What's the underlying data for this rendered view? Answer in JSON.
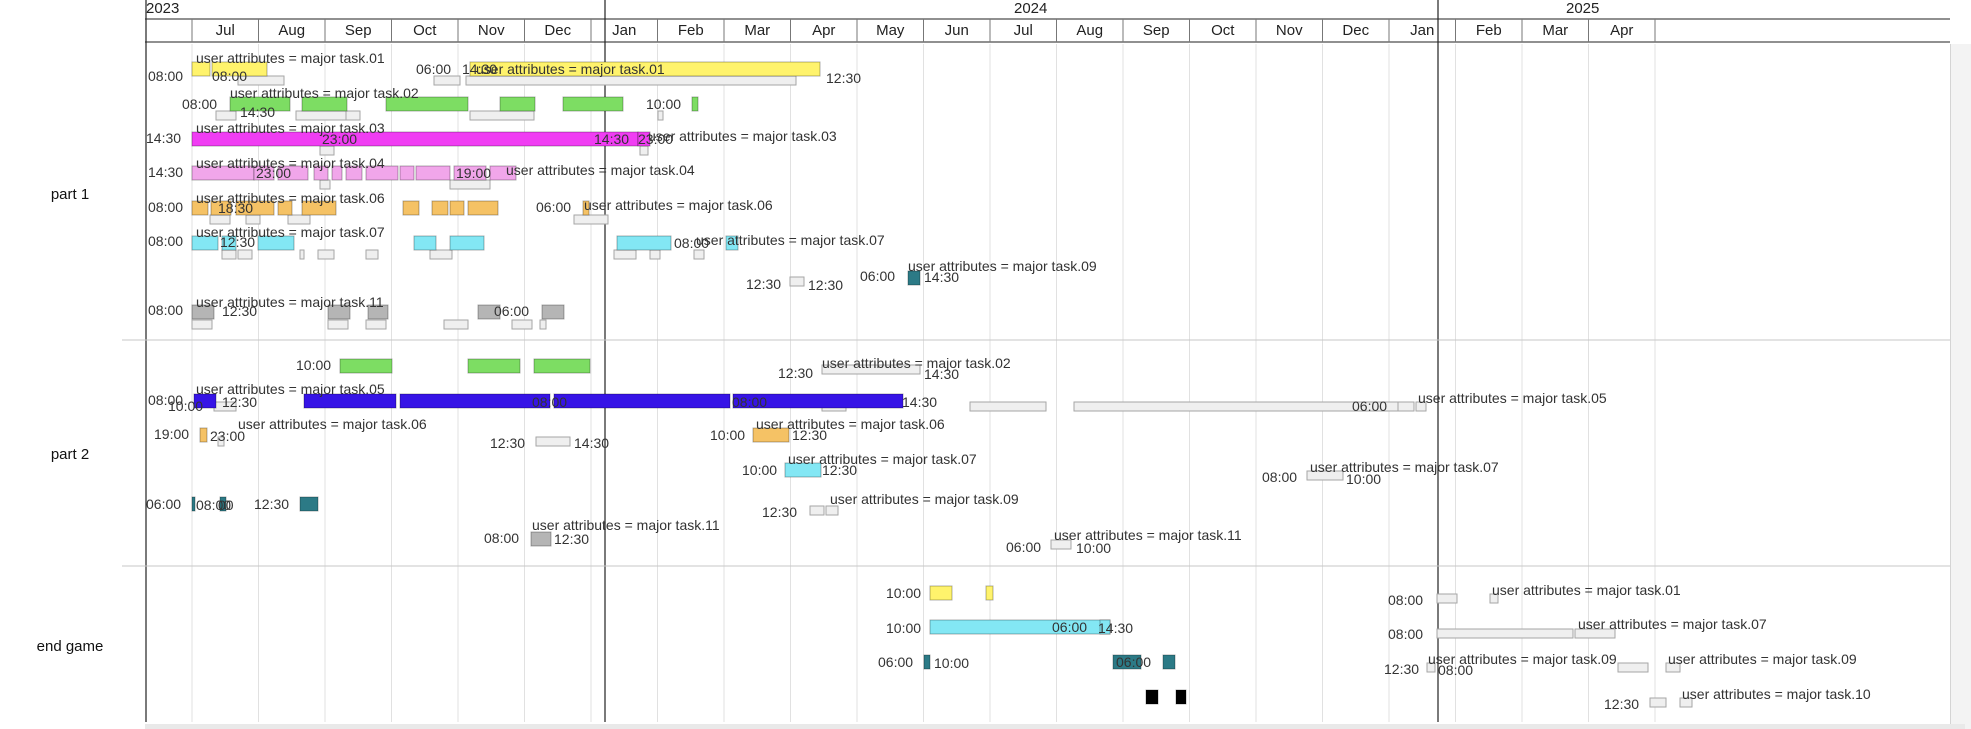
{
  "timeline": {
    "years": [
      {
        "label": "2023",
        "x": 146
      },
      {
        "label": "2024",
        "x": 1014
      },
      {
        "label": "2025",
        "x": 1566
      }
    ],
    "months": [
      "Jul",
      "Aug",
      "Sep",
      "Oct",
      "Nov",
      "Dec",
      "Jan",
      "Feb",
      "Mar",
      "Apr",
      "May",
      "Jun",
      "Jul",
      "Aug",
      "Sep",
      "Oct",
      "Nov",
      "Dec",
      "Jan",
      "Feb",
      "Mar",
      "Apr"
    ]
  },
  "rows": [
    {
      "label": "part 1"
    },
    {
      "label": "part 2"
    },
    {
      "label": "end game"
    }
  ],
  "colors": {
    "task01": "#fff36c",
    "task02": "#7ddd63",
    "task03": "#f03df3",
    "task04": "#f1a6ea",
    "task05": "#3614e6",
    "task06": "#f5c265",
    "task07": "#83e7f4",
    "task09": "#2c7a86",
    "task10": "#000000",
    "task11": "#b5b5b5",
    "ghost": "#efefef"
  },
  "bars": [
    [
      "task01",
      192,
      62,
      18
    ],
    [
      "task01",
      212,
      62,
      55
    ],
    [
      "task01",
      470,
      62,
      350
    ],
    [
      "task02",
      230,
      97,
      60
    ],
    [
      "task02",
      302,
      97,
      45
    ],
    [
      "task02",
      386,
      97,
      82
    ],
    [
      "task02",
      500,
      97,
      35
    ],
    [
      "task02",
      563,
      97,
      60
    ],
    [
      "task02",
      692,
      97,
      6
    ],
    [
      "task03",
      192,
      132,
      446
    ],
    [
      "task03",
      638,
      132,
      12
    ],
    [
      "task04",
      192,
      166,
      62
    ],
    [
      "task04",
      254,
      166,
      20
    ],
    [
      "task04",
      278,
      166,
      30
    ],
    [
      "task04",
      314,
      166,
      14
    ],
    [
      "task04",
      332,
      166,
      10
    ],
    [
      "task04",
      346,
      166,
      16
    ],
    [
      "task04",
      366,
      166,
      32
    ],
    [
      "task04",
      400,
      166,
      14
    ],
    [
      "task04",
      416,
      166,
      34
    ],
    [
      "task04",
      454,
      166,
      32
    ],
    [
      "task04",
      490,
      166,
      26
    ],
    [
      "task06",
      192,
      201,
      16
    ],
    [
      "task06",
      211,
      201,
      20
    ],
    [
      "task06",
      236,
      201,
      38
    ],
    [
      "task06",
      278,
      201,
      14
    ],
    [
      "task06",
      302,
      201,
      34
    ],
    [
      "task06",
      403,
      201,
      16
    ],
    [
      "task06",
      432,
      201,
      16
    ],
    [
      "task06",
      450,
      201,
      14
    ],
    [
      "task06",
      468,
      201,
      30
    ],
    [
      "task06",
      583,
      201,
      6
    ],
    [
      "task07",
      192,
      236,
      26
    ],
    [
      "task07",
      222,
      236,
      14
    ],
    [
      "task07",
      258,
      236,
      36
    ],
    [
      "task07",
      414,
      236,
      22
    ],
    [
      "task07",
      450,
      236,
      34
    ],
    [
      "task07",
      617,
      236,
      54
    ],
    [
      "task07",
      726,
      236,
      12
    ],
    [
      "task09",
      908,
      271,
      12
    ],
    [
      "task11",
      192,
      305,
      22
    ],
    [
      "task11",
      328,
      305,
      22
    ],
    [
      "task11",
      368,
      305,
      20
    ],
    [
      "task11",
      478,
      305,
      22
    ],
    [
      "task11",
      542,
      305,
      22
    ],
    [
      "task02",
      340,
      359,
      52
    ],
    [
      "task02",
      468,
      359,
      52
    ],
    [
      "task02",
      534,
      359,
      56
    ],
    [
      "task05",
      194,
      394,
      22
    ],
    [
      "task05",
      304,
      394,
      92
    ],
    [
      "task05",
      400,
      394,
      150
    ],
    [
      "task05",
      554,
      394,
      176
    ],
    [
      "task05",
      733,
      394,
      170
    ],
    [
      "task06",
      200,
      428,
      7
    ],
    [
      "task06",
      753,
      428,
      36
    ],
    [
      "task07",
      785,
      463,
      36
    ],
    [
      "task09",
      192,
      497,
      3
    ],
    [
      "task09",
      220,
      497,
      6
    ],
    [
      "task09",
      300,
      497,
      18
    ],
    [
      "task11",
      531,
      532,
      20
    ],
    [
      "task01",
      930,
      586,
      22
    ],
    [
      "task01",
      986,
      586,
      7
    ],
    [
      "task07",
      930,
      620,
      180
    ],
    [
      "task07",
      1100,
      620,
      10
    ],
    [
      "task09",
      924,
      655,
      6
    ],
    [
      "task09",
      1113,
      655,
      28
    ],
    [
      "task09",
      1163,
      655,
      12
    ],
    [
      "task10",
      1146,
      690,
      12
    ],
    [
      "task10",
      1176,
      690,
      10
    ]
  ],
  "ghosts": [
    [
      238,
      76,
      46
    ],
    [
      434,
      76,
      26
    ],
    [
      466,
      76,
      330
    ],
    [
      216,
      111,
      20
    ],
    [
      296,
      111,
      50
    ],
    [
      346,
      111,
      14
    ],
    [
      470,
      111,
      64
    ],
    [
      658,
      111,
      5
    ],
    [
      320,
      146,
      14
    ],
    [
      640,
      146,
      8
    ],
    [
      320,
      180,
      10
    ],
    [
      450,
      180,
      40
    ],
    [
      210,
      215,
      20
    ],
    [
      246,
      215,
      14
    ],
    [
      288,
      215,
      22
    ],
    [
      574,
      215,
      34
    ],
    [
      222,
      250,
      14
    ],
    [
      238,
      250,
      14
    ],
    [
      300,
      250,
      4
    ],
    [
      318,
      250,
      16
    ],
    [
      366,
      250,
      12
    ],
    [
      430,
      250,
      22
    ],
    [
      614,
      250,
      22
    ],
    [
      650,
      250,
      10
    ],
    [
      694,
      250,
      10
    ],
    [
      790,
      277,
      14
    ],
    [
      192,
      320,
      20
    ],
    [
      328,
      320,
      20
    ],
    [
      366,
      320,
      20
    ],
    [
      444,
      320,
      24
    ],
    [
      512,
      320,
      20
    ],
    [
      540,
      320,
      6
    ],
    [
      822,
      365,
      98
    ],
    [
      214,
      402,
      22
    ],
    [
      822,
      402,
      24
    ],
    [
      970,
      402,
      76
    ],
    [
      1074,
      402,
      328
    ],
    [
      1398,
      402,
      16
    ],
    [
      1416,
      402,
      10
    ],
    [
      218,
      437,
      6
    ],
    [
      536,
      437,
      34
    ],
    [
      1307,
      471,
      36
    ],
    [
      810,
      506,
      14
    ],
    [
      826,
      506,
      12
    ],
    [
      1051,
      540,
      20
    ],
    [
      1437,
      594,
      20
    ],
    [
      1490,
      594,
      8
    ],
    [
      1437,
      629,
      136
    ],
    [
      1575,
      629,
      40
    ],
    [
      1427,
      663,
      8
    ],
    [
      1618,
      663,
      30
    ],
    [
      1666,
      663,
      14
    ],
    [
      1650,
      698,
      16
    ],
    [
      1680,
      698,
      12
    ]
  ],
  "annotations": [
    [
      148,
      68,
      "08:00"
    ],
    [
      212,
      68,
      "08:00"
    ],
    [
      196,
      50,
      "user attributes = major task.01"
    ],
    [
      416,
      61,
      "06:00"
    ],
    [
      462,
      61,
      "14:30"
    ],
    [
      476,
      61,
      "user attributes = major task.01"
    ],
    [
      826,
      70,
      "12:30"
    ],
    [
      182,
      96,
      "08:00"
    ],
    [
      230,
      85,
      "user attributes = major task.02"
    ],
    [
      240,
      104,
      "14:30"
    ],
    [
      646,
      96,
      "10:00"
    ],
    [
      146,
      130,
      "14:30"
    ],
    [
      196,
      120,
      "user attributes = major task.03"
    ],
    [
      322,
      131,
      "23:00"
    ],
    [
      594,
      131,
      "14:30"
    ],
    [
      638,
      131,
      "23:00"
    ],
    [
      648,
      128,
      "user attributes = major task.03"
    ],
    [
      148,
      164,
      "14:30"
    ],
    [
      196,
      155,
      "user attributes = major task.04"
    ],
    [
      256,
      165,
      "23:00"
    ],
    [
      456,
      165,
      "19:00"
    ],
    [
      506,
      162,
      "user attributes = major task.04"
    ],
    [
      148,
      199,
      "08:00"
    ],
    [
      196,
      190,
      "user attributes = major task.06"
    ],
    [
      218,
      200,
      "18:30"
    ],
    [
      536,
      199,
      "06:00"
    ],
    [
      584,
      197,
      "user attributes = major task.06"
    ],
    [
      148,
      233,
      "08:00"
    ],
    [
      196,
      224,
      "user attributes = major task.07"
    ],
    [
      220,
      234,
      "12:30"
    ],
    [
      674,
      235,
      "08:00"
    ],
    [
      696,
      232,
      "user attributes = major task.07"
    ],
    [
      746,
      276,
      "12:30"
    ],
    [
      808,
      277,
      "12:30"
    ],
    [
      860,
      268,
      "06:00"
    ],
    [
      908,
      258,
      "user attributes = major task.09"
    ],
    [
      924,
      269,
      "14:30"
    ],
    [
      148,
      302,
      "08:00"
    ],
    [
      196,
      294,
      "user attributes = major task.11"
    ],
    [
      222,
      303,
      "12:30"
    ],
    [
      494,
      303,
      "06:00"
    ],
    [
      296,
      357,
      "10:00"
    ],
    [
      778,
      365,
      "12:30"
    ],
    [
      822,
      355,
      "user attributes = major task.02"
    ],
    [
      924,
      366,
      "14:30"
    ],
    [
      148,
      392,
      "08:00"
    ],
    [
      168,
      398,
      "10:00"
    ],
    [
      222,
      394,
      "12:30"
    ],
    [
      196,
      381,
      "user attributes = major task.05"
    ],
    [
      532,
      394,
      "08:00"
    ],
    [
      732,
      394,
      "08:00"
    ],
    [
      902,
      394,
      "14:30"
    ],
    [
      1352,
      398,
      "06:00"
    ],
    [
      1418,
      390,
      "user attributes = major task.05"
    ],
    [
      154,
      426,
      "19:00"
    ],
    [
      210,
      428,
      "23:00"
    ],
    [
      238,
      416,
      "user attributes = major task.06"
    ],
    [
      490,
      435,
      "12:30"
    ],
    [
      574,
      435,
      "14:30"
    ],
    [
      710,
      427,
      "10:00"
    ],
    [
      756,
      416,
      "user attributes = major task.06"
    ],
    [
      792,
      427,
      "12:30"
    ],
    [
      742,
      462,
      "10:00"
    ],
    [
      788,
      451,
      "user attributes = major task.07"
    ],
    [
      822,
      462,
      "12:30"
    ],
    [
      1262,
      469,
      "08:00"
    ],
    [
      1310,
      459,
      "user attributes = major task.07"
    ],
    [
      1346,
      471,
      "10:00"
    ],
    [
      146,
      496,
      "06:00"
    ],
    [
      196,
      497,
      "08:00"
    ],
    [
      218,
      497,
      "00"
    ],
    [
      254,
      496,
      "12:30"
    ],
    [
      762,
      504,
      "12:30"
    ],
    [
      830,
      491,
      "user attributes = major task.09"
    ],
    [
      484,
      530,
      "08:00"
    ],
    [
      532,
      517,
      "user attributes = major task.11"
    ],
    [
      554,
      531,
      "12:30"
    ],
    [
      1006,
      539,
      "06:00"
    ],
    [
      1054,
      527,
      "user attributes = major task.11"
    ],
    [
      1076,
      540,
      "10:00"
    ],
    [
      886,
      585,
      "10:00"
    ],
    [
      1388,
      592,
      "08:00"
    ],
    [
      1492,
      582,
      "user attributes = major task.01"
    ],
    [
      886,
      620,
      "10:00"
    ],
    [
      1052,
      619,
      "06:00"
    ],
    [
      1098,
      620,
      "14:30"
    ],
    [
      1388,
      626,
      "08:00"
    ],
    [
      1578,
      616,
      "user attributes = major task.07"
    ],
    [
      878,
      654,
      "06:00"
    ],
    [
      934,
      655,
      "10:00"
    ],
    [
      1116,
      654,
      "06:00"
    ],
    [
      1384,
      661,
      "12:30"
    ],
    [
      1428,
      651,
      "user attributes = major task.09"
    ],
    [
      1438,
      662,
      "08:00"
    ],
    [
      1668,
      651,
      "user attributes = major task.09"
    ],
    [
      1604,
      696,
      "12:30"
    ],
    [
      1682,
      686,
      "user attributes = major task.10"
    ]
  ]
}
